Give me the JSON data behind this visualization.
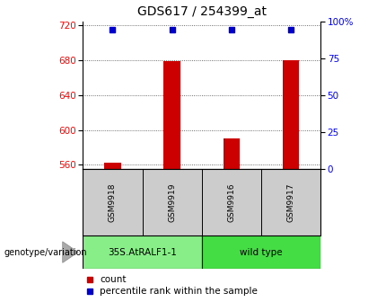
{
  "title": "GDS617 / 254399_at",
  "samples": [
    "GSM9918",
    "GSM9919",
    "GSM9916",
    "GSM9917"
  ],
  "counts": [
    562,
    679,
    590,
    680
  ],
  "percentile_value": 715,
  "ylim_left": [
    555,
    725
  ],
  "yticks_left": [
    560,
    600,
    640,
    680,
    720
  ],
  "ylim_right": [
    0,
    100
  ],
  "yticks_right": [
    0,
    25,
    50,
    75,
    100
  ],
  "bar_color": "#cc0000",
  "dot_color": "#0000cc",
  "groups": [
    {
      "label": "35S.AtRALF1-1",
      "samples": [
        0,
        1
      ],
      "color": "#88ee88"
    },
    {
      "label": "wild type",
      "samples": [
        2,
        3
      ],
      "color": "#44dd44"
    }
  ],
  "group_label_prefix": "genotype/variation",
  "legend_count_label": "count",
  "legend_percentile_label": "percentile rank within the sample",
  "grid_color": "#444444",
  "bg_color": "#ffffff",
  "tick_area_bg": "#cccccc",
  "title_fontsize": 10,
  "tick_fontsize": 7.5,
  "sample_fontsize": 6.5
}
